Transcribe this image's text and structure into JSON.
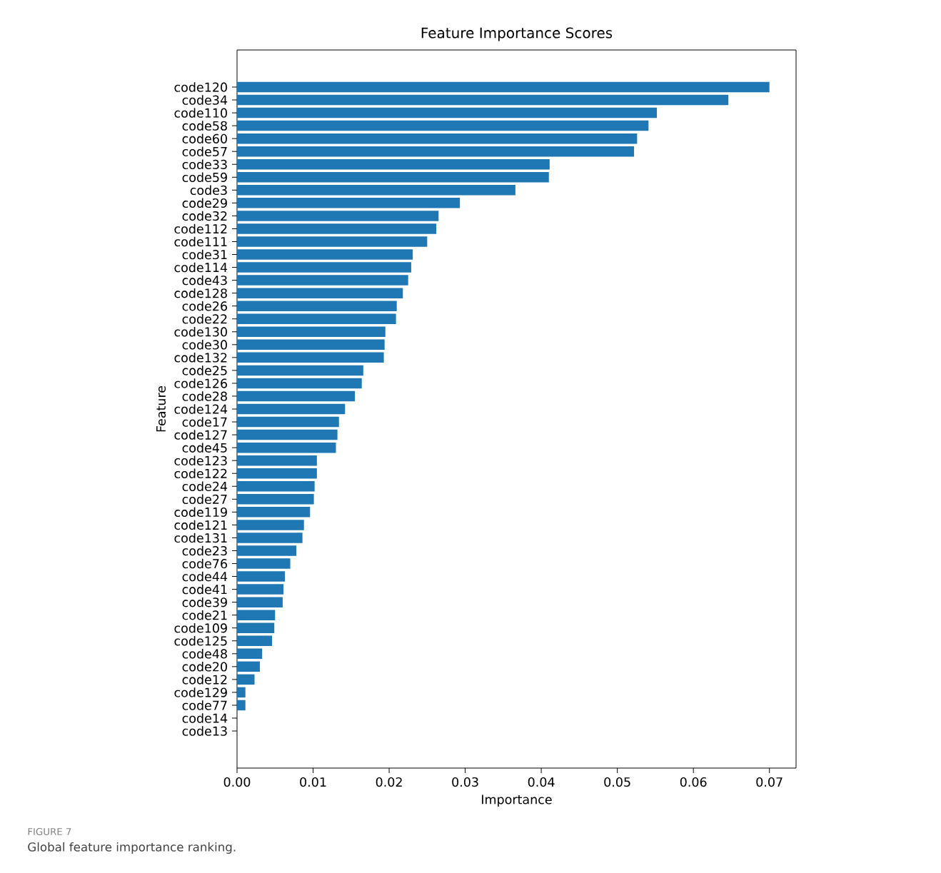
{
  "chart_data": {
    "type": "bar",
    "orientation": "horizontal",
    "title": "Feature Importance Scores",
    "xlabel": "Importance",
    "ylabel": "Feature",
    "categories": [
      "code120",
      "code34",
      "code110",
      "code58",
      "code60",
      "code57",
      "code33",
      "code59",
      "code3",
      "code29",
      "code32",
      "code112",
      "code111",
      "code31",
      "code114",
      "code43",
      "code128",
      "code26",
      "code22",
      "code130",
      "code30",
      "code132",
      "code25",
      "code126",
      "code28",
      "code124",
      "code17",
      "code127",
      "code45",
      "code123",
      "code122",
      "code24",
      "code27",
      "code119",
      "code121",
      "code131",
      "code23",
      "code76",
      "code44",
      "code41",
      "code39",
      "code21",
      "code109",
      "code125",
      "code48",
      "code20",
      "code12",
      "code129",
      "code77",
      "code14",
      "code13"
    ],
    "values": [
      0.07,
      0.0646,
      0.0552,
      0.0541,
      0.0526,
      0.0522,
      0.0411,
      0.041,
      0.0366,
      0.0293,
      0.0265,
      0.0262,
      0.025,
      0.0231,
      0.0229,
      0.0225,
      0.0218,
      0.021,
      0.0209,
      0.0195,
      0.0194,
      0.0193,
      0.0166,
      0.0164,
      0.0155,
      0.0142,
      0.0134,
      0.0132,
      0.013,
      0.0105,
      0.0105,
      0.0102,
      0.0101,
      0.0096,
      0.0088,
      0.0086,
      0.0078,
      0.007,
      0.0063,
      0.0061,
      0.006,
      0.005,
      0.0049,
      0.0046,
      0.0033,
      0.003,
      0.0023,
      0.0011,
      0.0011,
      0.0,
      0.0
    ],
    "color": "#1f77b4",
    "xlim": [
      0.0,
      0.0735
    ],
    "xticks": [
      {
        "value": 0.0,
        "label": "0.00"
      },
      {
        "value": 0.01,
        "label": "0.01"
      },
      {
        "value": 0.02,
        "label": "0.02"
      },
      {
        "value": 0.03,
        "label": "0.03"
      },
      {
        "value": 0.04,
        "label": "0.04"
      },
      {
        "value": 0.05,
        "label": "0.05"
      },
      {
        "value": 0.06,
        "label": "0.06"
      },
      {
        "value": 0.07,
        "label": "0.07"
      }
    ],
    "grid": false,
    "annotations": [
      "FIGURE 7",
      "Global feature importance ranking."
    ]
  }
}
